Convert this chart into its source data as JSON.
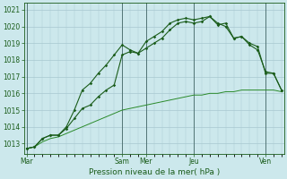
{
  "xlabel": "Pression niveau de la mer( hPa )",
  "bg_color": "#cce8ec",
  "grid_color": "#a8c8d0",
  "line_dark": "#1a5c1a",
  "line_light": "#2a8a2a",
  "ylim": [
    1012.4,
    1021.4
  ],
  "yticks": [
    1013,
    1014,
    1015,
    1016,
    1017,
    1018,
    1019,
    1020,
    1021
  ],
  "xtick_labels": [
    "Mar",
    "Sam",
    "Mer",
    "Jeu",
    "Ven"
  ],
  "xtick_positions": [
    0,
    12,
    15,
    21,
    30
  ],
  "total_points": 33,
  "series1": [
    1012.7,
    1012.8,
    1013.3,
    1013.5,
    1013.5,
    1014.0,
    1015.0,
    1016.2,
    1016.6,
    1017.2,
    1017.7,
    1018.3,
    1018.9,
    1018.6,
    1018.4,
    1019.1,
    1019.4,
    1019.7,
    1020.2,
    1020.4,
    1020.5,
    1020.4,
    1020.5,
    1020.6,
    1020.1,
    1020.2,
    1019.3,
    1019.4,
    1019.0,
    1018.8,
    1017.2,
    1017.2,
    1016.2
  ],
  "series2": [
    1012.7,
    1012.8,
    1013.1,
    1013.3,
    1013.4,
    1013.6,
    1013.8,
    1014.0,
    1014.2,
    1014.4,
    1014.6,
    1014.8,
    1015.0,
    1015.1,
    1015.2,
    1015.3,
    1015.4,
    1015.5,
    1015.6,
    1015.7,
    1015.8,
    1015.9,
    1015.9,
    1016.0,
    1016.0,
    1016.1,
    1016.1,
    1016.2,
    1016.2,
    1016.2,
    1016.2,
    1016.2,
    1016.1
  ],
  "series3": [
    1012.7,
    1012.8,
    1013.3,
    1013.5,
    1013.5,
    1013.9,
    1014.5,
    1015.1,
    1015.3,
    1015.8,
    1016.2,
    1016.5,
    1018.3,
    1018.5,
    1018.4,
    1018.7,
    1019.0,
    1019.3,
    1019.8,
    1020.2,
    1020.3,
    1020.2,
    1020.3,
    1020.6,
    1020.2,
    1020.0,
    1019.3,
    1019.4,
    1018.9,
    1018.6,
    1017.3,
    1017.2,
    1016.2
  ],
  "vline_positions": [
    0,
    12,
    15,
    21,
    30
  ],
  "vline_color": "#446666",
  "xlabel_fontsize": 6.5,
  "tick_fontsize": 5.5
}
